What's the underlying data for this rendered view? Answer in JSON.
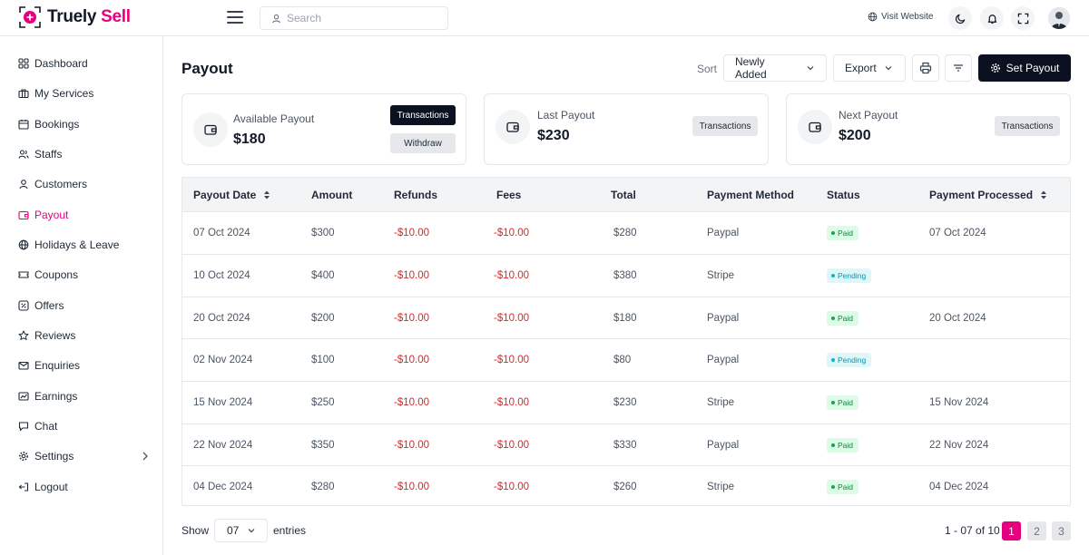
{
  "brand": {
    "name_part1": "Truely",
    "name_part2": "Sell",
    "accent": "#e6007e"
  },
  "header": {
    "search_placeholder": "Search",
    "visit_website": "Visit Website",
    "icons": [
      "moon-icon",
      "bell-icon",
      "fullscreen-icon"
    ]
  },
  "sidebar": {
    "items": [
      {
        "label": "Dashboard",
        "icon": "grid-icon"
      },
      {
        "label": "My Services",
        "icon": "briefcase-icon"
      },
      {
        "label": "Bookings",
        "icon": "calendar-icon"
      },
      {
        "label": "Staffs",
        "icon": "users-icon"
      },
      {
        "label": "Customers",
        "icon": "user-icon"
      },
      {
        "label": "Payout",
        "icon": "wallet-icon",
        "active": true
      },
      {
        "label": "Holidays & Leave",
        "icon": "globe-icon"
      },
      {
        "label": "Coupons",
        "icon": "ticket-icon"
      },
      {
        "label": "Offers",
        "icon": "percent-icon"
      },
      {
        "label": "Reviews",
        "icon": "star-icon"
      },
      {
        "label": "Enquiries",
        "icon": "mail-icon"
      },
      {
        "label": "Earnings",
        "icon": "chart-icon"
      },
      {
        "label": "Chat",
        "icon": "chat-icon"
      },
      {
        "label": "Settings",
        "icon": "gear-icon"
      },
      {
        "label": "Logout",
        "icon": "logout-icon"
      }
    ]
  },
  "page": {
    "title": "Payout",
    "sort_label": "Sort",
    "sort_value": "Newly Added",
    "export_label": "Export",
    "set_payout": "Set Payout"
  },
  "cards": [
    {
      "label": "Available Payout",
      "amount": "$180",
      "btn1": "Transactions",
      "btn2": "Withdraw"
    },
    {
      "label": "Last Payout",
      "amount": "$230",
      "btn1": "Transactions"
    },
    {
      "label": "Next Payout",
      "amount": "$200",
      "btn1": "Transactions"
    }
  ],
  "table": {
    "columns": [
      "Payout Date",
      "Amount",
      "Refunds",
      "Fees",
      "Total",
      "Payment Method",
      "Status",
      "Payment Processed"
    ],
    "rows": [
      {
        "date": "07 Oct 2024",
        "amount": "$300",
        "refunds": "-$10.00",
        "fees": "-$10.00",
        "total": "$280",
        "method": "Paypal",
        "status": "Paid",
        "processed": "07 Oct 2024"
      },
      {
        "date": "10 Oct 2024",
        "amount": "$400",
        "refunds": "-$10.00",
        "fees": "-$10.00",
        "total": "$380",
        "method": "Stripe",
        "status": "Pending",
        "processed": ""
      },
      {
        "date": "20 Oct 2024",
        "amount": "$200",
        "refunds": "-$10.00",
        "fees": "-$10.00",
        "total": "$180",
        "method": "Paypal",
        "status": "Paid",
        "processed": "20 Oct 2024"
      },
      {
        "date": "02 Nov 2024",
        "amount": "$100",
        "refunds": "-$10.00",
        "fees": "-$10.00",
        "total": "$80",
        "method": "Paypal",
        "status": "Pending",
        "processed": ""
      },
      {
        "date": "15 Nov 2024",
        "amount": "$250",
        "refunds": "-$10.00",
        "fees": "-$10.00",
        "total": "$230",
        "method": "Stripe",
        "status": "Paid",
        "processed": "15 Nov 2024"
      },
      {
        "date": "22 Nov 2024",
        "amount": "$350",
        "refunds": "-$10.00",
        "fees": "-$10.00",
        "total": "$330",
        "method": "Paypal",
        "status": "Paid",
        "processed": "22 Nov 2024"
      },
      {
        "date": "04 Dec 2024",
        "amount": "$280",
        "refunds": "-$10.00",
        "fees": "-$10.00",
        "total": "$260",
        "method": "Stripe",
        "status": "Paid",
        "processed": "04 Dec 2024"
      }
    ]
  },
  "footer": {
    "show_label": "Show",
    "entries_value": "07",
    "entries_label": "entries",
    "range": "1 - 07 of 10",
    "pages": [
      "1",
      "2",
      "3"
    ]
  }
}
